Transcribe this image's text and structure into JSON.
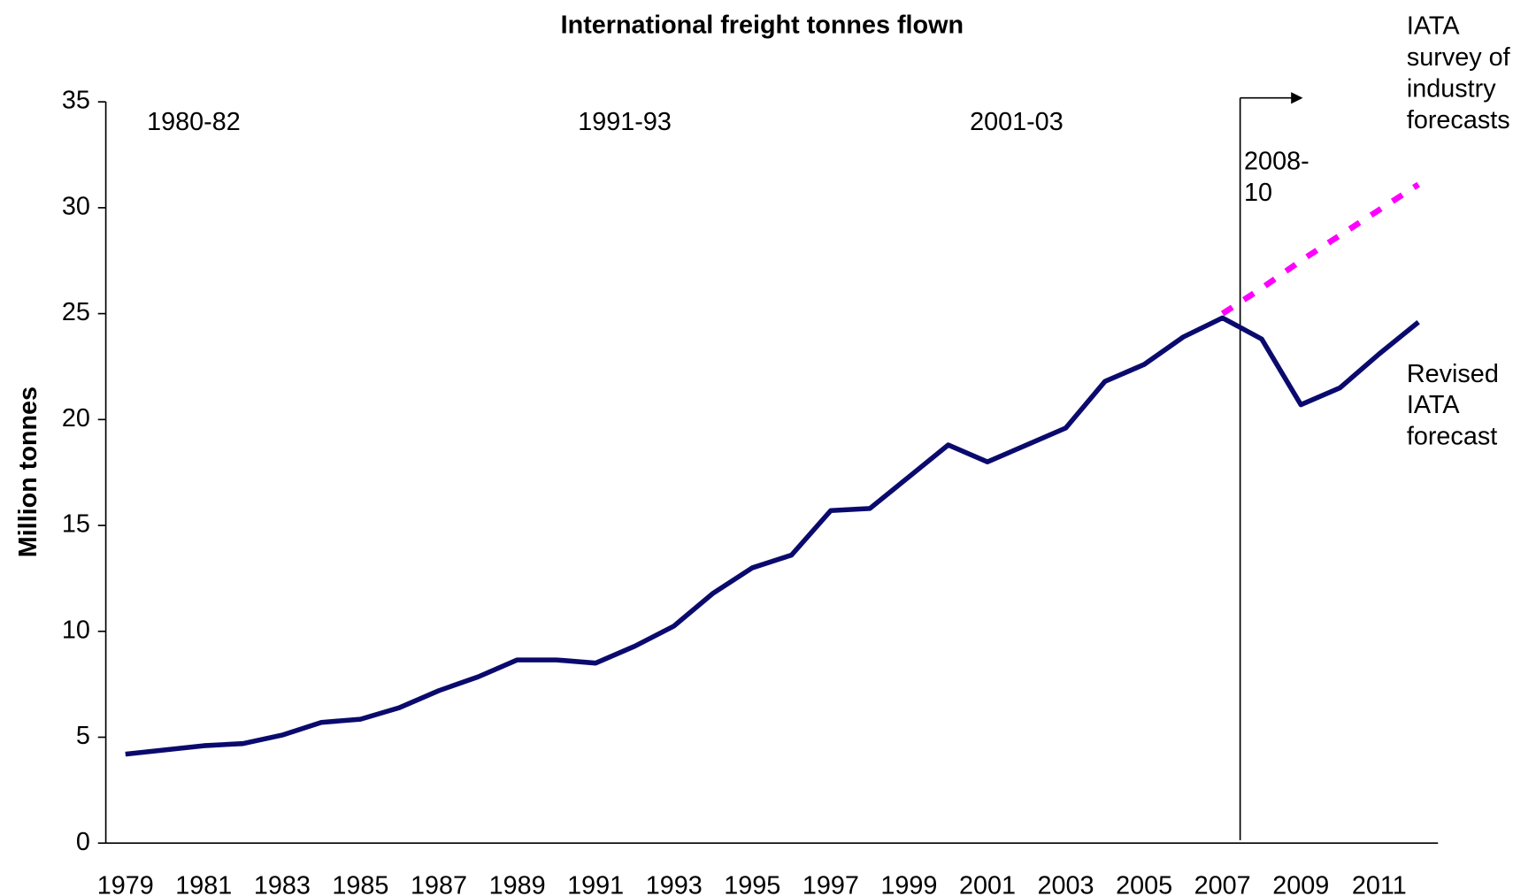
{
  "chart_data": {
    "type": "line",
    "title": "International freight tonnes flown",
    "y_label": "Million tonnes",
    "categories": [
      "1979",
      null,
      "1981",
      null,
      "1983",
      null,
      "1985",
      null,
      "1987",
      null,
      "1989",
      null,
      "1991",
      null,
      "1993",
      null,
      "1995",
      null,
      "1997",
      null,
      "1999",
      null,
      "2001",
      null,
      "2003",
      null,
      "2005",
      null,
      "2007",
      null,
      "2009",
      null,
      "2011",
      null
    ],
    "series": [
      {
        "name": "Revised IATA forecast",
        "color": "#0a0a6e",
        "dashed": false,
        "values": [
          4.2,
          4.4,
          4.6,
          4.7,
          5.1,
          5.7,
          5.85,
          6.4,
          7.2,
          7.85,
          8.65,
          8.65,
          8.5,
          9.3,
          10.25,
          11.8,
          13.0,
          13.6,
          15.7,
          15.8,
          17.3,
          18.8,
          18.0,
          18.8,
          19.6,
          21.8,
          22.6,
          23.9,
          24.8,
          23.8,
          20.7,
          21.5,
          23.1,
          24.6
        ]
      },
      {
        "name": "IATA survey of industry forecasts",
        "color": "#ff00ff",
        "dashed": true,
        "values": [
          null,
          null,
          null,
          null,
          null,
          null,
          null,
          null,
          null,
          null,
          null,
          null,
          null,
          null,
          null,
          null,
          null,
          null,
          null,
          null,
          null,
          null,
          null,
          null,
          null,
          null,
          null,
          null,
          25.0,
          26.2,
          27.5,
          28.7,
          29.9,
          31.1
        ]
      }
    ],
    "annotations": [
      {
        "text": "1980-82",
        "category_index": 1
      },
      {
        "text": "1991-93",
        "category_index": 12
      },
      {
        "text": "2001-03",
        "category_index": 22
      },
      {
        "text": "2008-10",
        "category_index": 29
      }
    ],
    "ylim": [
      0,
      35
    ],
    "yticks": [
      0,
      5,
      10,
      15,
      20,
      25,
      30,
      35
    ],
    "grid": false
  }
}
